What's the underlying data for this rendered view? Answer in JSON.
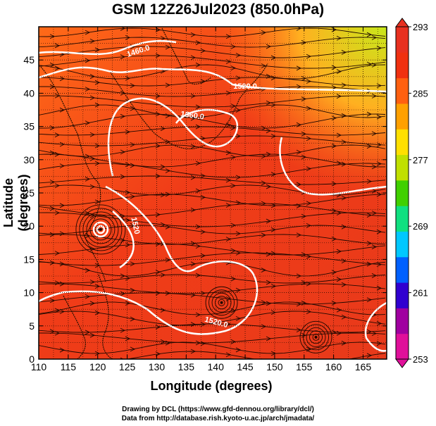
{
  "title": "GSM 12Z26Jul2023 (850.0hPa)",
  "x_axis": {
    "label": "Longitude (degrees)",
    "min": 110,
    "max": 169,
    "ticks": [
      110,
      115,
      120,
      125,
      130,
      135,
      140,
      145,
      150,
      155,
      160,
      165
    ]
  },
  "y_axis": {
    "label": "Latitude  (degrees)",
    "min": 0,
    "max": 50,
    "ticks": [
      0,
      5,
      10,
      15,
      20,
      25,
      30,
      35,
      40,
      45
    ]
  },
  "colorbar": {
    "min": 253,
    "max": 293,
    "labels": [
      293,
      285,
      277,
      269,
      261,
      253
    ],
    "colors": [
      "#e0109a",
      "#a000a0",
      "#3000d0",
      "#0060ff",
      "#00c8ff",
      "#10e080",
      "#40d000",
      "#c0e000",
      "#ffe000",
      "#ffa000",
      "#ff6010",
      "#f03010",
      "#e83020"
    ]
  },
  "field": {
    "background_color": "#f04418",
    "contour_color": "#ffffff",
    "contour_labels": [
      {
        "text": "1460.0",
        "lon": 127,
        "lat": 46,
        "angle": -18
      },
      {
        "text": "1520.0",
        "lon": 145,
        "lat": 40.7,
        "angle": 0
      },
      {
        "text": "1560.0",
        "lon": 136,
        "lat": 36.3,
        "angle": 8
      },
      {
        "text": "1520.0",
        "lon": 140,
        "lat": 5.2,
        "angle": 15
      },
      {
        "text": "1520",
        "lon": 126,
        "lat": 20,
        "angle": 78
      }
    ],
    "cyclones": [
      {
        "name": "typhoon",
        "lon": 120.5,
        "lat": 19.5
      },
      {
        "name": "low",
        "lon": 141,
        "lat": 8.5
      },
      {
        "name": "low",
        "lon": 157,
        "lat": 3.3
      }
    ]
  },
  "credits": [
    "Drawing by DCL (https://www.gfd-dennou.org/library/dcl/)",
    "Data from http://database.rish.kyoto-u.ac.jp/arch/jmadata/"
  ]
}
